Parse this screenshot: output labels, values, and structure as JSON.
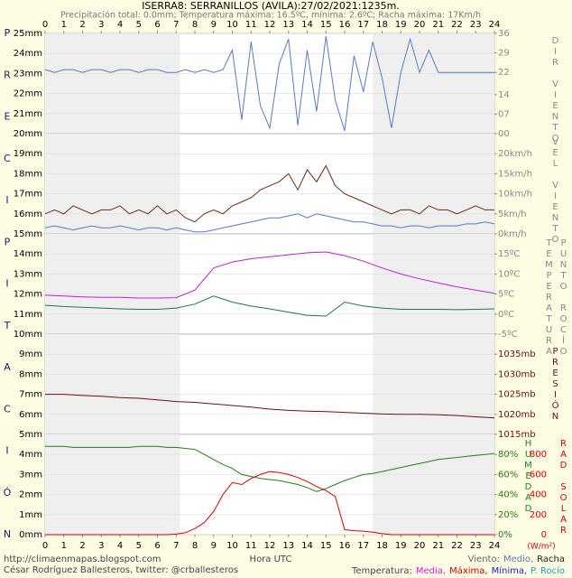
{
  "header": {
    "title": "ISERRA8: SERRANILLOS (AVILA):27/02/2021:1235m.",
    "subtitle": "Precipitación total: 0.0mm; Temperatura máxima: 16.5ºC, mínima: 2.6ºC; Racha máxima: 17Km/h"
  },
  "left_label": [
    "P",
    "R",
    "E",
    "C",
    "I",
    "P",
    "I",
    "T",
    "A",
    "C",
    "I",
    "Ó",
    "N"
  ],
  "right_labels": {
    "dir": "DIR VIENTO",
    "vel": "VEL VIENTO",
    "temp": "TEMPERATURA",
    "dew": "PUNTO ROCÍO",
    "pres": "PRESIÓN",
    "hum": "HUMEDAD",
    "rad": "RAD SOLAR"
  },
  "x_label": "Hora UTC",
  "rad_unit": "(W/m²)",
  "footer": {
    "lines": [
      "http://climaenmapas.blogspot.com",
      "César Rodríguez Ballesteros, twitter: @crballesteros"
    ],
    "wind": {
      "items": [
        "Viento:",
        "Medio,",
        "Racha"
      ],
      "colors": [
        "#666666",
        "#5a7ac0",
        "#222222"
      ]
    },
    "temp": {
      "items": [
        "Temperatura:",
        "Media,",
        "Máxima,",
        "Mínima,",
        "P. Rocío"
      ],
      "colors": [
        "#444444",
        "#e020e0",
        "#e00000",
        "#2020d0",
        "#20a0b0"
      ]
    }
  },
  "night_bands": [
    [
      0,
      7.2
    ],
    [
      17.5,
      24
    ]
  ],
  "chart_data": [
    {
      "type": "line",
      "xlim": [
        0,
        24
      ],
      "xticks": [
        0,
        1,
        2,
        3,
        4,
        5,
        6,
        7,
        8,
        9,
        10,
        11,
        12,
        13,
        14,
        15,
        16,
        17,
        18,
        19,
        20,
        21,
        22,
        23,
        24
      ],
      "ylim": [
        20,
        25
      ],
      "yticks": [
        {
          "value": 25,
          "label": "25mm"
        },
        {
          "value": 24,
          "label": "24mm"
        },
        {
          "value": 23,
          "label": "23mm"
        },
        {
          "value": 22,
          "label": "22mm"
        },
        {
          "value": 21,
          "label": "21mm"
        },
        {
          "value": 20,
          "label": "20mm"
        }
      ],
      "y2lim": [
        0,
        36
      ],
      "y2ticks": [
        36,
        29,
        22,
        14,
        {
          "value": 7,
          "label": "07"
        },
        {
          "value": 0,
          "label": "00"
        }
      ],
      "x": [
        0,
        0.5,
        1,
        1.5,
        2,
        2.5,
        3,
        3.5,
        4,
        4.5,
        5,
        5.5,
        6,
        6.5,
        7,
        7.5,
        8,
        8.5,
        9,
        9.5,
        10,
        10.5,
        11,
        11.5,
        12,
        12.5,
        13,
        13.5,
        14,
        14.5,
        15,
        15.5,
        16,
        16.5,
        17,
        17.5,
        18,
        18.5,
        19,
        19.5,
        20,
        20.5,
        21,
        21.5,
        22,
        22.5,
        23,
        23.5,
        24
      ],
      "series": [
        {
          "color": "#5a7ac0",
          "axis": "y2",
          "values": [
            23,
            22,
            23,
            23,
            22,
            23,
            23,
            22,
            23,
            23,
            22,
            23,
            23,
            22,
            22,
            23,
            22,
            23,
            22,
            23,
            30,
            5,
            33,
            10,
            2,
            25,
            34,
            3,
            30,
            8,
            35,
            12,
            1,
            28,
            15,
            33,
            20,
            2,
            22,
            34,
            22,
            30,
            22,
            22,
            22,
            22,
            22,
            22,
            22
          ]
        }
      ]
    },
    {
      "type": "line",
      "xlim": [
        0,
        24
      ],
      "ylim": [
        15,
        20
      ],
      "yticks": [
        {
          "value": 19,
          "label": "19mm"
        },
        {
          "value": 18,
          "label": "18mm"
        },
        {
          "value": 17,
          "label": "17mm"
        },
        {
          "value": 16,
          "label": "16mm"
        },
        {
          "value": 15,
          "label": "15mm"
        }
      ],
      "y2lim": [
        0,
        25
      ],
      "y2ticks": [
        {
          "value": 20,
          "label": "20km/h"
        },
        {
          "value": 15,
          "label": "15km/h"
        },
        {
          "value": 10,
          "label": "10km/h"
        },
        {
          "value": 5,
          "label": "5km/h"
        },
        {
          "value": 0,
          "label": "0km/h"
        }
      ],
      "x": [
        0,
        0.5,
        1,
        1.5,
        2,
        2.5,
        3,
        3.5,
        4,
        4.5,
        5,
        5.5,
        6,
        6.5,
        7,
        7.5,
        8,
        8.5,
        9,
        9.5,
        10,
        10.5,
        11,
        11.5,
        12,
        12.5,
        13,
        13.5,
        14,
        14.5,
        15,
        15.5,
        16,
        16.5,
        17,
        17.5,
        18,
        18.5,
        19,
        19.5,
        20,
        20.5,
        21,
        21.5,
        22,
        22.5,
        23,
        23.5,
        24
      ],
      "series": [
        {
          "color": "#5a7ac0",
          "axis": "y2",
          "values": [
            1.5,
            2,
            1.5,
            1,
            1.5,
            2,
            1.5,
            1.5,
            2,
            1.5,
            1,
            1.5,
            1.5,
            1,
            1.5,
            1,
            0.5,
            0.5,
            1,
            1.5,
            2,
            2.5,
            3,
            3.5,
            4,
            4,
            4.5,
            5,
            4,
            5,
            4.5,
            4,
            3.5,
            3,
            3,
            2.5,
            2,
            2,
            1.5,
            2,
            2,
            1.5,
            2,
            2,
            2,
            2.5,
            2.5,
            3,
            2.5
          ]
        },
        {
          "color": "#6b2a16",
          "axis": "y2",
          "values": [
            5,
            6,
            5,
            7,
            6,
            5,
            6,
            6,
            7,
            5,
            6,
            5,
            7,
            5,
            6,
            4,
            3,
            5,
            6,
            5,
            7,
            8,
            9,
            11,
            12,
            13,
            15,
            11,
            16,
            13,
            17,
            12,
            10,
            9,
            8,
            7,
            6,
            5,
            6,
            6,
            5,
            7,
            6,
            6,
            5,
            6,
            7,
            6,
            6
          ]
        }
      ]
    },
    {
      "type": "line",
      "xlim": [
        0,
        24
      ],
      "ylim": [
        10,
        15
      ],
      "yticks": [
        {
          "value": 14,
          "label": "14mm"
        },
        {
          "value": 13,
          "label": "13mm"
        },
        {
          "value": 12,
          "label": "12mm"
        },
        {
          "value": 11,
          "label": "11mm"
        },
        {
          "value": 10,
          "label": "10mm"
        }
      ],
      "y2lim": [
        -5,
        20
      ],
      "y2ticks": [
        {
          "value": 15,
          "label": "15ºC"
        },
        {
          "value": 10,
          "label": "10ºC"
        },
        {
          "value": 5,
          "label": "5ºC"
        },
        {
          "value": 0,
          "label": "0ºC"
        },
        {
          "value": -5,
          "label": "-5ºC"
        }
      ],
      "x": [
        0,
        1,
        2,
        3,
        4,
        5,
        6,
        7,
        8,
        9,
        10,
        11,
        12,
        13,
        14,
        15,
        16,
        17,
        18,
        19,
        20,
        21,
        22,
        23,
        24
      ],
      "series": [
        {
          "color": "#c020d0",
          "axis": "y2",
          "values": [
            4.7,
            4.5,
            4.3,
            4.2,
            4.2,
            4,
            4,
            4.1,
            6,
            11.5,
            13,
            13.8,
            14.3,
            14.8,
            15.3,
            15.5,
            14.6,
            13.2,
            11.5,
            10,
            8.8,
            7.8,
            6.8,
            6,
            5.2
          ]
        },
        {
          "color": "#2a6a6a",
          "axis": "y2",
          "values": [
            2.2,
            1.9,
            1.7,
            1.5,
            1.3,
            1.2,
            1.2,
            1.5,
            2.5,
            4.5,
            3,
            2,
            1.3,
            0.5,
            -0.3,
            -0.5,
            3,
            2,
            1.5,
            1.2,
            1.2,
            1.2,
            1.1,
            1.2,
            1.3
          ]
        }
      ]
    },
    {
      "type": "line",
      "xlim": [
        0,
        24
      ],
      "ylim": [
        5,
        10
      ],
      "yticks": [
        {
          "value": 9,
          "label": "9mm"
        },
        {
          "value": 8,
          "label": "8mm"
        },
        {
          "value": 7,
          "label": "7mm"
        },
        {
          "value": 6,
          "label": "6mm"
        },
        {
          "value": 5,
          "label": "5mm"
        }
      ],
      "y2lim": [
        1015,
        1040
      ],
      "y2ticks": [
        {
          "value": 1035,
          "label": "1035mb"
        },
        {
          "value": 1030,
          "label": "1030mb"
        },
        {
          "value": 1025,
          "label": "1025mb"
        },
        {
          "value": 1020,
          "label": "1020mb"
        },
        {
          "value": 1015,
          "label": "1015mb"
        }
      ],
      "x": [
        0,
        1,
        2,
        3,
        4,
        5,
        6,
        7,
        8,
        9,
        10,
        11,
        12,
        13,
        14,
        15,
        16,
        17,
        18,
        19,
        20,
        21,
        22,
        23,
        24
      ],
      "series": [
        {
          "color": "#6b1010",
          "axis": "y2",
          "values": [
            1025,
            1025,
            1024.7,
            1024.5,
            1024.2,
            1024,
            1023.6,
            1023.2,
            1023,
            1022.6,
            1022.2,
            1021.8,
            1021.3,
            1021,
            1020.8,
            1020.7,
            1020.5,
            1020.3,
            1020.1,
            1020,
            1020,
            1019.9,
            1019.7,
            1019.4,
            1019.1
          ]
        }
      ]
    },
    {
      "type": "line",
      "xlim": [
        0,
        24
      ],
      "xticks": [
        0,
        1,
        2,
        3,
        4,
        5,
        6,
        7,
        8,
        9,
        10,
        11,
        12,
        13,
        14,
        15,
        16,
        17,
        18,
        19,
        20,
        21,
        22,
        23,
        24
      ],
      "ylim": [
        0,
        5
      ],
      "yticks": [
        {
          "value": 4,
          "label": "4mm"
        },
        {
          "value": 3,
          "label": "3mm"
        },
        {
          "value": 2,
          "label": "2mm"
        },
        {
          "value": 1,
          "label": "1mm"
        },
        {
          "value": 0,
          "label": "0mm"
        }
      ],
      "y2lim": [
        0,
        100
      ],
      "y2ticks": [
        {
          "value": 80,
          "label": "80%"
        },
        {
          "value": 60,
          "label": "60%"
        },
        {
          "value": 40,
          "label": "40%"
        },
        {
          "value": 20,
          "label": "20%"
        },
        {
          "value": 0,
          "label": "0%"
        }
      ],
      "y3lim": [
        0,
        1000
      ],
      "y3ticks": [
        800,
        600,
        400,
        200,
        0
      ],
      "x": [
        0,
        0.5,
        1,
        1.5,
        2,
        2.5,
        3,
        3.5,
        4,
        4.5,
        5,
        5.5,
        6,
        6.5,
        7,
        7.5,
        8,
        8.5,
        9,
        9.5,
        10,
        10.5,
        11,
        11.5,
        12,
        12.5,
        13,
        13.5,
        14,
        14.5,
        15,
        15.5,
        16,
        16.5,
        17,
        17.5,
        18,
        18.5,
        19,
        19.5,
        20,
        20.5,
        21,
        21.5,
        22,
        22.5,
        23,
        23.5,
        24
      ],
      "series": [
        {
          "color": "#2a7a1a",
          "axis": "y2",
          "values": [
            88,
            88,
            88,
            87,
            87,
            87,
            87,
            87,
            87,
            87,
            88,
            88,
            88,
            87,
            87,
            86,
            85,
            80,
            75,
            70,
            66,
            60,
            58,
            56,
            55,
            54,
            52,
            50,
            47,
            43,
            46,
            50,
            54,
            57,
            60,
            61,
            63,
            65,
            67,
            69,
            71,
            73,
            75,
            76,
            77,
            78,
            79,
            80,
            81
          ]
        },
        {
          "color": "#e00000",
          "axis": "y3",
          "values": [
            0,
            0,
            0,
            0,
            0,
            0,
            0,
            0,
            0,
            0,
            0,
            0,
            0,
            0,
            5,
            20,
            60,
            120,
            230,
            400,
            520,
            500,
            560,
            600,
            630,
            620,
            600,
            570,
            530,
            480,
            440,
            380,
            50,
            40,
            35,
            25,
            10,
            0,
            0,
            0,
            0,
            0,
            0,
            0,
            0,
            0,
            0,
            0,
            0
          ]
        }
      ]
    }
  ]
}
